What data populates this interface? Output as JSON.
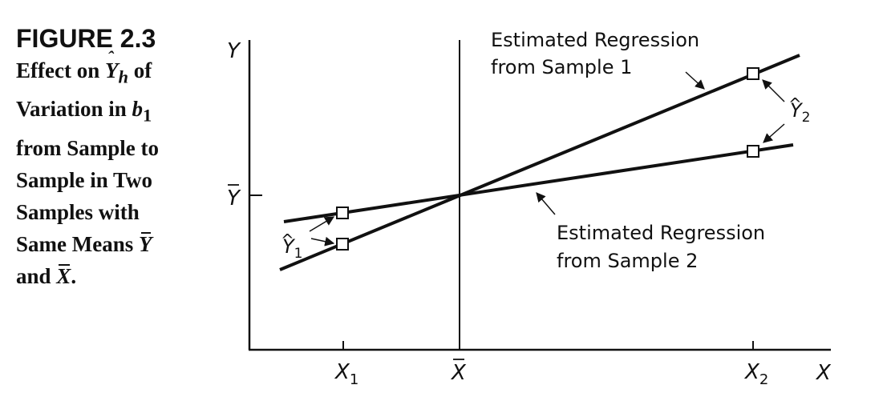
{
  "caption": {
    "figure_label": "FIGURE 2.3",
    "line1_pre": "Effect on ",
    "line1_sym": "Y",
    "line1_sub": "h",
    "line1_post": " of",
    "line2_pre": "Variation in ",
    "line2_sym": "b",
    "line2_sub": "1",
    "line3": "from Sample to",
    "line4": "Sample in Two",
    "line5": "Samples with",
    "line6_pre": "Same Means ",
    "line6_sym": "Y",
    "line7_pre": "and ",
    "line7_sym": "X",
    "line7_post": "."
  },
  "axes": {
    "y_label": "Y",
    "x_label": "X",
    "ybar_label": "Y",
    "xbar_label": "X",
    "x1_label": "X",
    "x1_sub": "1",
    "x2_label": "X",
    "x2_sub": "2"
  },
  "annotations": {
    "sample1_line1": "Estimated Regression",
    "sample1_line2": "from Sample 1",
    "sample2_line1": "Estimated Regression",
    "sample2_line2": "from Sample 2",
    "yhat1": "Y",
    "yhat1_sub": "1",
    "yhat2": "Y",
    "yhat2_sub": "2"
  },
  "colors": {
    "ink": "#111111",
    "background": "#ffffff"
  }
}
